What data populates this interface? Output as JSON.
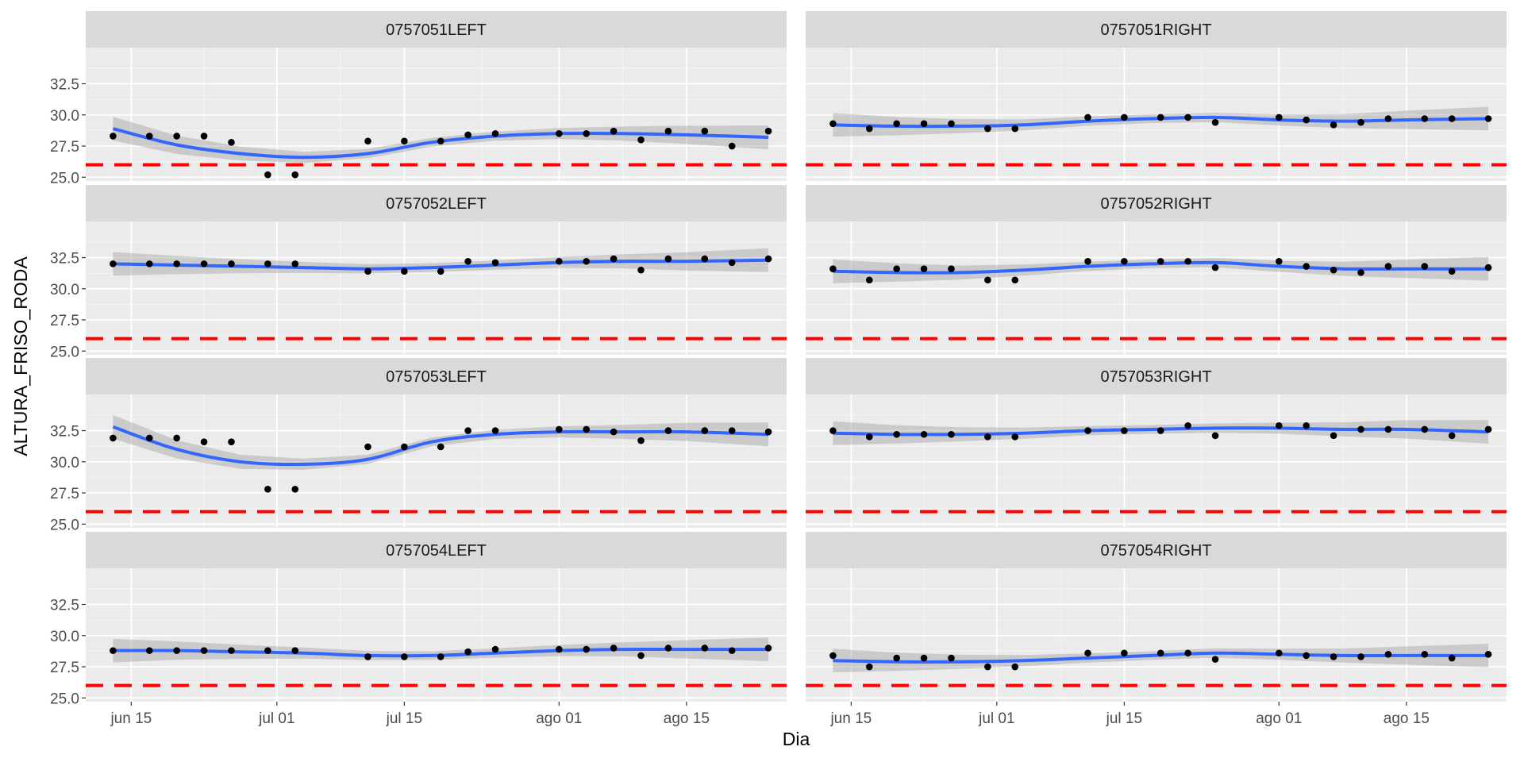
{
  "chart_data": {
    "type": "scatter",
    "xlabel": "Dia",
    "ylabel": "ALTURA_FRISO_RODA",
    "xlim": [
      "2023-06-10",
      "2023-08-26"
    ],
    "ylim": [
      24.7,
      35.4
    ],
    "y_ticks": [
      25.0,
      27.5,
      30.0,
      32.5
    ],
    "y_tick_labels": [
      "25.0",
      "27.5",
      "30.0",
      "32.5"
    ],
    "x_ticks": [
      "2023-06-15",
      "2023-07-01",
      "2023-07-15",
      "2023-08-01",
      "2023-08-15"
    ],
    "x_tick_labels": [
      "jun 15",
      "jul 01",
      "jul 15",
      "ago 01",
      "ago 15"
    ],
    "reference_line": {
      "y": 26.0,
      "color": "#ff0000",
      "style": "dashed"
    },
    "smooth_color": "#3366ff",
    "grid": true,
    "facet_rows": 4,
    "facet_cols": 2,
    "x": [
      "2023-06-13",
      "2023-06-17",
      "2023-06-20",
      "2023-06-23",
      "2023-06-26",
      "2023-06-30",
      "2023-07-03",
      "2023-07-11",
      "2023-07-15",
      "2023-07-19",
      "2023-07-22",
      "2023-07-25",
      "2023-08-01",
      "2023-08-04",
      "2023-08-07",
      "2023-08-10",
      "2023-08-13",
      "2023-08-17",
      "2023-08-20",
      "2023-08-24"
    ],
    "facets": [
      {
        "name": "0757051LEFT",
        "y": [
          28.3,
          28.3,
          28.3,
          28.3,
          27.8,
          25.2,
          25.2,
          27.9,
          27.9,
          27.9,
          28.4,
          28.5,
          28.5,
          28.5,
          28.7,
          28.0,
          28.7,
          28.7,
          27.5,
          28.7
        ],
        "smooth_x": [
          "2023-06-13",
          "2023-06-20",
          "2023-06-27",
          "2023-07-04",
          "2023-07-11",
          "2023-07-18",
          "2023-07-25",
          "2023-08-01",
          "2023-08-08",
          "2023-08-15",
          "2023-08-24"
        ],
        "smooth_y": [
          28.9,
          27.6,
          26.9,
          26.6,
          26.9,
          27.8,
          28.3,
          28.5,
          28.5,
          28.4,
          28.2
        ]
      },
      {
        "name": "0757051RIGHT",
        "y": [
          29.3,
          28.9,
          29.3,
          29.3,
          29.3,
          28.9,
          28.9,
          29.8,
          29.8,
          29.8,
          29.8,
          29.4,
          29.8,
          29.6,
          29.2,
          29.4,
          29.7,
          29.7,
          29.7,
          29.7
        ],
        "smooth_x": [
          "2023-06-13",
          "2023-06-20",
          "2023-06-27",
          "2023-07-04",
          "2023-07-11",
          "2023-07-18",
          "2023-07-25",
          "2023-08-01",
          "2023-08-08",
          "2023-08-15",
          "2023-08-24"
        ],
        "smooth_y": [
          29.2,
          29.1,
          29.1,
          29.2,
          29.5,
          29.7,
          29.8,
          29.6,
          29.5,
          29.6,
          29.7
        ]
      },
      {
        "name": "0757052LEFT",
        "y": [
          32.0,
          32.0,
          32.0,
          32.0,
          32.0,
          32.0,
          32.0,
          31.4,
          31.4,
          31.4,
          32.2,
          32.1,
          32.2,
          32.2,
          32.4,
          31.5,
          32.4,
          32.4,
          32.1,
          32.4
        ],
        "smooth_x": [
          "2023-06-13",
          "2023-06-20",
          "2023-06-27",
          "2023-07-04",
          "2023-07-11",
          "2023-07-18",
          "2023-07-25",
          "2023-08-01",
          "2023-08-08",
          "2023-08-15",
          "2023-08-24"
        ],
        "smooth_y": [
          32.0,
          31.9,
          31.8,
          31.7,
          31.6,
          31.7,
          31.9,
          32.1,
          32.2,
          32.2,
          32.3
        ]
      },
      {
        "name": "0757052RIGHT",
        "y": [
          31.6,
          30.7,
          31.6,
          31.6,
          31.6,
          30.7,
          30.7,
          32.2,
          32.2,
          32.2,
          32.2,
          31.7,
          32.2,
          31.8,
          31.5,
          31.3,
          31.8,
          31.8,
          31.4,
          31.7
        ],
        "smooth_x": [
          "2023-06-13",
          "2023-06-20",
          "2023-06-27",
          "2023-07-04",
          "2023-07-11",
          "2023-07-18",
          "2023-07-25",
          "2023-08-01",
          "2023-08-08",
          "2023-08-15",
          "2023-08-24"
        ],
        "smooth_y": [
          31.4,
          31.3,
          31.3,
          31.5,
          31.8,
          32.0,
          32.1,
          31.8,
          31.6,
          31.6,
          31.6
        ]
      },
      {
        "name": "0757053LEFT",
        "y": [
          31.9,
          31.9,
          31.9,
          31.6,
          31.6,
          27.8,
          27.8,
          31.2,
          31.2,
          31.2,
          32.5,
          32.5,
          32.6,
          32.6,
          32.4,
          31.7,
          32.5,
          32.5,
          32.5,
          32.4
        ],
        "smooth_x": [
          "2023-06-13",
          "2023-06-20",
          "2023-06-27",
          "2023-07-04",
          "2023-07-11",
          "2023-07-18",
          "2023-07-25",
          "2023-08-01",
          "2023-08-08",
          "2023-08-15",
          "2023-08-24"
        ],
        "smooth_y": [
          32.8,
          31.0,
          30.0,
          29.8,
          30.2,
          31.6,
          32.2,
          32.4,
          32.4,
          32.4,
          32.2
        ]
      },
      {
        "name": "0757053RIGHT",
        "y": [
          32.5,
          32.0,
          32.2,
          32.2,
          32.2,
          32.0,
          32.0,
          32.5,
          32.5,
          32.5,
          32.9,
          32.1,
          32.9,
          32.9,
          32.1,
          32.6,
          32.6,
          32.6,
          32.1,
          32.6
        ],
        "smooth_x": [
          "2023-06-13",
          "2023-06-20",
          "2023-06-27",
          "2023-07-04",
          "2023-07-11",
          "2023-07-18",
          "2023-07-25",
          "2023-08-01",
          "2023-08-08",
          "2023-08-15",
          "2023-08-24"
        ],
        "smooth_y": [
          32.3,
          32.2,
          32.2,
          32.3,
          32.5,
          32.6,
          32.7,
          32.7,
          32.6,
          32.6,
          32.4
        ]
      },
      {
        "name": "0757054LEFT",
        "y": [
          28.8,
          28.8,
          28.8,
          28.8,
          28.8,
          28.8,
          28.8,
          28.3,
          28.3,
          28.3,
          28.7,
          28.9,
          28.9,
          28.9,
          29.0,
          28.4,
          29.0,
          29.0,
          28.8,
          29.0
        ],
        "smooth_x": [
          "2023-06-13",
          "2023-06-20",
          "2023-06-27",
          "2023-07-04",
          "2023-07-11",
          "2023-07-18",
          "2023-07-25",
          "2023-08-01",
          "2023-08-08",
          "2023-08-15",
          "2023-08-24"
        ],
        "smooth_y": [
          28.8,
          28.8,
          28.7,
          28.6,
          28.4,
          28.4,
          28.6,
          28.8,
          28.9,
          28.9,
          28.9
        ]
      },
      {
        "name": "0757054RIGHT",
        "y": [
          28.4,
          27.5,
          28.2,
          28.2,
          28.2,
          27.5,
          27.5,
          28.6,
          28.6,
          28.6,
          28.6,
          28.1,
          28.6,
          28.4,
          28.3,
          28.3,
          28.5,
          28.5,
          28.2,
          28.5
        ],
        "smooth_x": [
          "2023-06-13",
          "2023-06-20",
          "2023-06-27",
          "2023-07-04",
          "2023-07-11",
          "2023-07-18",
          "2023-07-25",
          "2023-08-01",
          "2023-08-08",
          "2023-08-15",
          "2023-08-24"
        ],
        "smooth_y": [
          28.0,
          27.9,
          27.9,
          28.0,
          28.2,
          28.4,
          28.6,
          28.5,
          28.4,
          28.4,
          28.4
        ]
      }
    ]
  }
}
